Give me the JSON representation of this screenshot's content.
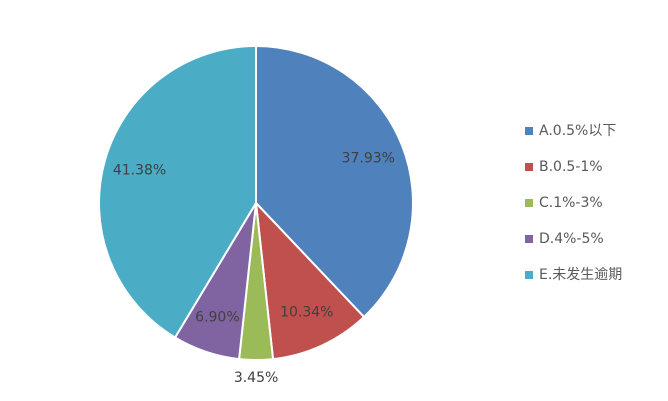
{
  "chart_data": {
    "type": "pie",
    "categories": [
      "A.0.5%以下",
      "B.0.5-1%",
      "C.1%-3%",
      "D.4%-5%",
      "E.未发生逾期"
    ],
    "values": [
      37.93,
      10.34,
      3.45,
      6.9,
      41.38
    ],
    "value_labels": [
      "37.93%",
      "10.34%",
      "3.45%",
      "6.90%",
      "41.38%"
    ],
    "colors": [
      "#4f81bd",
      "#c0504d",
      "#9bbb59",
      "#8064a2",
      "#4bacc6"
    ],
    "legend": "right"
  }
}
